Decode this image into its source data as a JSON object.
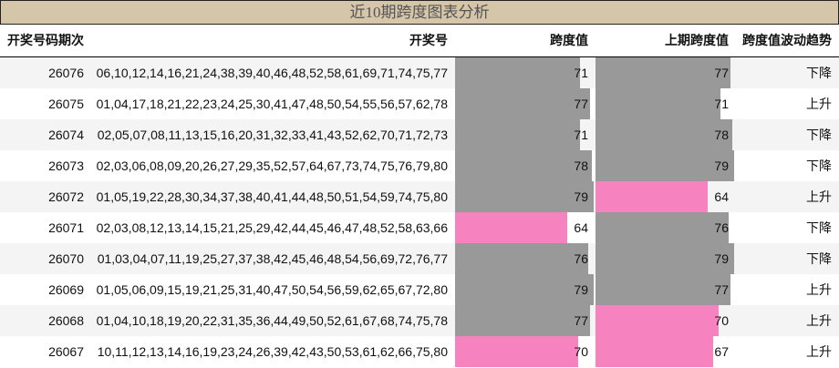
{
  "title": "近10期跨度图表分析",
  "columns": [
    "开奖号码期次",
    "开奖号",
    "跨度值",
    "上期跨度值",
    "跨度值波动趋势"
  ],
  "colors": {
    "high": "#999999",
    "low": "#f683bf",
    "title_bg": "#d5c5a9"
  },
  "scale_max": 80,
  "rows": [
    {
      "issue": "26076",
      "numbers": "06,10,12,14,16,21,24,38,39,40,46,48,52,58,61,69,71,74,75,77",
      "span": 71,
      "span_color": "high",
      "prev": 77,
      "prev_color": "high",
      "trend": "下降"
    },
    {
      "issue": "26075",
      "numbers": "01,04,17,18,21,22,23,24,25,30,41,47,48,50,54,55,56,57,62,78",
      "span": 77,
      "span_color": "high",
      "prev": 71,
      "prev_color": "high",
      "trend": "上升"
    },
    {
      "issue": "26074",
      "numbers": "02,05,07,08,11,13,15,16,20,31,32,33,41,43,52,62,70,71,72,73",
      "span": 71,
      "span_color": "high",
      "prev": 78,
      "prev_color": "high",
      "trend": "下降"
    },
    {
      "issue": "26073",
      "numbers": "02,03,06,08,09,20,26,27,29,35,52,57,64,67,73,74,75,76,79,80",
      "span": 78,
      "span_color": "high",
      "prev": 79,
      "prev_color": "high",
      "trend": "下降"
    },
    {
      "issue": "26072",
      "numbers": "01,05,19,22,28,30,34,37,38,40,41,44,48,50,51,54,59,74,75,80",
      "span": 79,
      "span_color": "high",
      "prev": 64,
      "prev_color": "low",
      "trend": "上升"
    },
    {
      "issue": "26071",
      "numbers": "02,03,08,12,13,14,15,21,25,29,42,44,45,46,47,48,52,58,63,66",
      "span": 64,
      "span_color": "low",
      "prev": 76,
      "prev_color": "high",
      "trend": "下降"
    },
    {
      "issue": "26070",
      "numbers": "01,03,04,07,11,19,25,27,37,38,42,45,46,48,54,56,69,72,76,77",
      "span": 76,
      "span_color": "high",
      "prev": 79,
      "prev_color": "high",
      "trend": "下降"
    },
    {
      "issue": "26069",
      "numbers": "01,05,06,09,15,19,21,25,31,40,47,50,54,56,59,62,65,67,72,80",
      "span": 79,
      "span_color": "high",
      "prev": 77,
      "prev_color": "high",
      "trend": "上升"
    },
    {
      "issue": "26068",
      "numbers": "01,04,10,18,19,20,22,31,35,36,44,49,50,52,61,67,68,74,75,78",
      "span": 77,
      "span_color": "high",
      "prev": 70,
      "prev_color": "low",
      "trend": "上升"
    },
    {
      "issue": "26067",
      "numbers": "10,11,12,13,14,16,19,23,24,26,39,42,43,50,53,61,62,66,75,80",
      "span": 70,
      "span_color": "low",
      "prev": 67,
      "prev_color": "low",
      "trend": "上升"
    }
  ]
}
